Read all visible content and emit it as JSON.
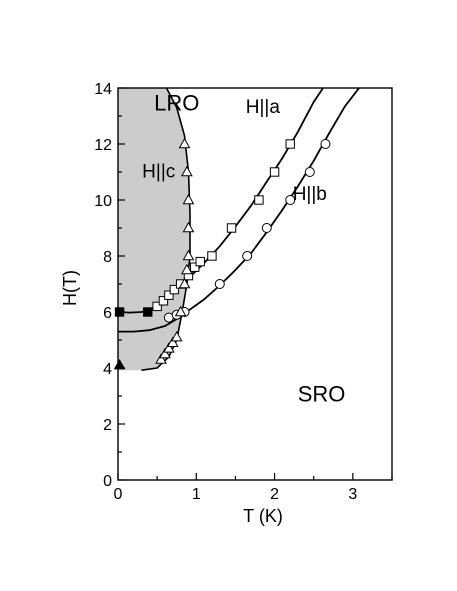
{
  "chart_data": {
    "type": "scatter",
    "title": "",
    "xlabel": "T (K)",
    "ylabel": "H(T)",
    "xlim": [
      0,
      3.5
    ],
    "ylim": [
      0,
      14
    ],
    "xticks": [
      0,
      1,
      2,
      3
    ],
    "yticks": [
      0,
      2,
      4,
      6,
      8,
      10,
      12,
      14
    ],
    "grid": false,
    "region_colors": {
      "lro_fill": "#cccccc"
    },
    "annotations": [
      {
        "id": "lro",
        "text": "LRO",
        "x": 0.75,
        "y": 13.2
      },
      {
        "id": "h-c",
        "text": "H||c",
        "x": 0.52,
        "y": 10.8
      },
      {
        "id": "h-a",
        "text": "H||a",
        "x": 1.85,
        "y": 13.1
      },
      {
        "id": "h-b",
        "text": "H||b",
        "x": 2.45,
        "y": 10.0
      },
      {
        "id": "sro",
        "text": "SRO",
        "x": 2.6,
        "y": 2.8
      }
    ],
    "series": [
      {
        "marker": "open-square",
        "points": [
          [
            0.5,
            6.2
          ],
          [
            0.58,
            6.4
          ],
          [
            0.65,
            6.6
          ],
          [
            0.72,
            6.8
          ],
          [
            0.8,
            7.0
          ],
          [
            0.9,
            7.3
          ],
          [
            0.98,
            7.6
          ],
          [
            1.05,
            7.8
          ],
          [
            1.2,
            8.0
          ],
          [
            1.45,
            9.0
          ],
          [
            1.8,
            10.0
          ],
          [
            2.0,
            11.0
          ],
          [
            2.2,
            12.0
          ]
        ]
      },
      {
        "marker": "open-circle",
        "points": [
          [
            0.65,
            5.8
          ],
          [
            0.75,
            5.9
          ],
          [
            0.85,
            6.0
          ],
          [
            1.3,
            7.0
          ],
          [
            1.65,
            8.0
          ],
          [
            1.9,
            9.0
          ],
          [
            2.2,
            10.0
          ],
          [
            2.45,
            11.0
          ],
          [
            2.65,
            12.0
          ]
        ]
      },
      {
        "marker": "open-triangle",
        "points": [
          [
            0.55,
            4.3
          ],
          [
            0.6,
            4.5
          ],
          [
            0.65,
            4.7
          ],
          [
            0.7,
            4.9
          ],
          [
            0.75,
            5.1
          ],
          [
            0.8,
            6.0
          ],
          [
            0.85,
            7.0
          ],
          [
            0.88,
            7.5
          ],
          [
            0.9,
            8.0
          ],
          [
            0.9,
            9.0
          ],
          [
            0.9,
            10.0
          ],
          [
            0.88,
            11.0
          ],
          [
            0.85,
            12.0
          ]
        ]
      },
      {
        "marker": "filled-square",
        "points": [
          [
            0.02,
            6.0
          ],
          [
            0.38,
            6.0
          ]
        ]
      },
      {
        "marker": "filled-triangle",
        "points": [
          [
            0.02,
            4.1
          ]
        ]
      }
    ],
    "curves": [
      {
        "id": "h-a-curve",
        "points": [
          [
            0.5,
            6.1
          ],
          [
            0.7,
            6.65
          ],
          [
            0.9,
            7.2
          ],
          [
            1.1,
            7.75
          ],
          [
            1.3,
            8.35
          ],
          [
            1.5,
            9.05
          ],
          [
            1.7,
            9.8
          ],
          [
            1.9,
            10.65
          ],
          [
            2.1,
            11.5
          ],
          [
            2.3,
            12.45
          ],
          [
            2.5,
            13.5
          ],
          [
            2.62,
            14.0
          ]
        ]
      },
      {
        "id": "h-b-curve",
        "points": [
          [
            0.65,
            5.8
          ],
          [
            0.9,
            6.05
          ],
          [
            1.1,
            6.45
          ],
          [
            1.3,
            6.95
          ],
          [
            1.5,
            7.5
          ],
          [
            1.7,
            8.1
          ],
          [
            1.9,
            8.85
          ],
          [
            2.1,
            9.65
          ],
          [
            2.3,
            10.5
          ],
          [
            2.5,
            11.4
          ],
          [
            2.7,
            12.4
          ],
          [
            2.9,
            13.35
          ],
          [
            3.08,
            14.0
          ]
        ]
      },
      {
        "id": "h-c-low-curve",
        "points": [
          [
            0.0,
            5.3
          ],
          [
            0.2,
            5.3
          ],
          [
            0.4,
            5.35
          ],
          [
            0.6,
            5.5
          ],
          [
            0.75,
            5.75
          ],
          [
            0.85,
            6.0
          ]
        ]
      },
      {
        "id": "filled-square-curve",
        "points": [
          [
            0.0,
            6.0
          ],
          [
            0.15,
            5.98
          ],
          [
            0.3,
            6.0
          ],
          [
            0.45,
            6.1
          ],
          [
            0.55,
            6.2
          ]
        ]
      }
    ],
    "lro_boundary": [
      [
        0.0,
        14.0
      ],
      [
        0.62,
        14.0
      ],
      [
        0.75,
        13.3
      ],
      [
        0.85,
        12.3
      ],
      [
        0.9,
        11.0
      ],
      [
        0.92,
        9.5
      ],
      [
        0.92,
        8.0
      ],
      [
        0.88,
        7.0
      ],
      [
        0.82,
        6.0
      ],
      [
        0.75,
        5.0
      ],
      [
        0.65,
        4.4
      ],
      [
        0.5,
        4.0
      ],
      [
        0.3,
        3.92
      ],
      [
        0.0,
        3.92
      ]
    ]
  }
}
